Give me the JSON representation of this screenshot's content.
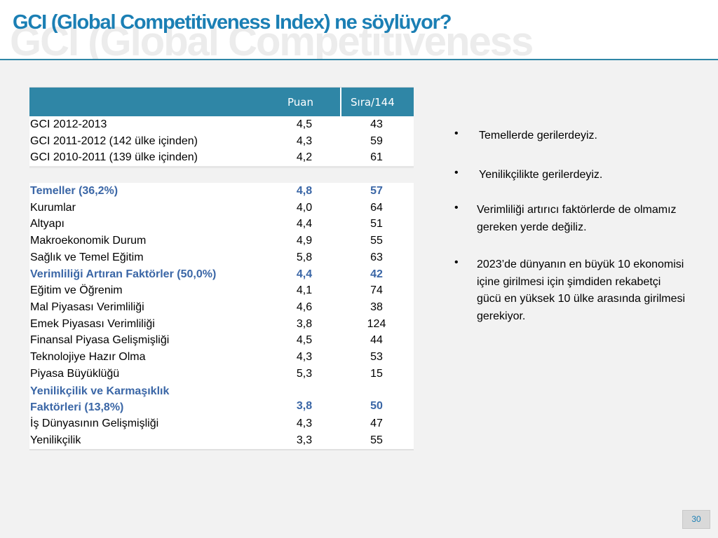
{
  "header": {
    "title": "GCI (Global Competitiveness Index) ne söylüyor?",
    "title_shadow": "GCI (Global Competitiveness"
  },
  "table": {
    "columns": {
      "puan": "Puan",
      "sira": "Sıra/144"
    },
    "top_rows": [
      {
        "label": "GCI 2012-2013",
        "puan": "4,5",
        "sira": "43"
      },
      {
        "label": "GCI 2011-2012 (142 ülke içinden)",
        "puan": "4,3",
        "sira": "59"
      },
      {
        "label": "GCI 2010-2011 (139 ülke içinden)",
        "puan": "4,2",
        "sira": "61"
      }
    ],
    "rows": [
      {
        "label": "Temeller (36,2%)",
        "puan": "4,8",
        "sira": "57",
        "highlight": true
      },
      {
        "label": "Kurumlar",
        "puan": "4,0",
        "sira": "64"
      },
      {
        "label": "Altyapı",
        "puan": "4,4",
        "sira": "51"
      },
      {
        "label": "Makroekonomik Durum",
        "puan": "4,9",
        "sira": "55"
      },
      {
        "label": "Sağlık ve Temel Eğitim",
        "puan": "5,8",
        "sira": "63"
      },
      {
        "label": "Verimliliği Artıran Faktörler (50,0%)",
        "puan": "4,4",
        "sira": "42",
        "highlight": true
      },
      {
        "label": "Eğitim ve Öğrenim",
        "puan": "4,1",
        "sira": "74"
      },
      {
        "label": "Mal Piyasası Verimliliği",
        "puan": "4,6",
        "sira": "38"
      },
      {
        "label": "Emek Piyasası Verimliliği",
        "puan": "3,8",
        "sira": "124"
      },
      {
        "label": "Finansal Piyasa Gelişmişliği",
        "puan": "4,5",
        "sira": "44"
      },
      {
        "label": "Teknolojiye Hazır Olma",
        "puan": "4,3",
        "sira": "53"
      },
      {
        "label": "Piyasa Büyüklüğü",
        "puan": "5,3",
        "sira": "15"
      },
      {
        "label": "Yenilikçilik ve Karmaşıklık Faktörleri (13,8%)",
        "label_line1": "Yenilikçilik ve Karmaşıklık",
        "label_line2": "Faktörleri (13,8%)",
        "puan": "3,8",
        "sira": "50",
        "highlight": true,
        "tall": true
      },
      {
        "label": "İş Dünyasının Gelişmişliği",
        "puan": "4,3",
        "sira": "47"
      },
      {
        "label": "Yenilikçilik",
        "puan": "3,3",
        "sira": "55"
      }
    ]
  },
  "bullets": [
    {
      "symbol": "•",
      "text": "Temellerde gerilerdeyiz."
    },
    {
      "symbol": "•",
      "text": "Yenilikçilikte gerilerdeyiz."
    },
    {
      "symbol": "•",
      "text": "Verimliliği artırıcı faktörlerde de olmamız gereken yerde değiliz."
    },
    {
      "symbol": "•",
      "text": "2023’de dünyanın en büyük 10 ekonomisi içine girilmesi için şimdiden rekabetçi gücü en yüksek 10 ülke arasında girilmesi gerekiyor."
    }
  ],
  "page_number": "30",
  "colors": {
    "title": "#1b7fb4",
    "table_header_bg": "#2f86a6",
    "highlight_text": "#3a66a6",
    "background": "#f2f2f2"
  }
}
